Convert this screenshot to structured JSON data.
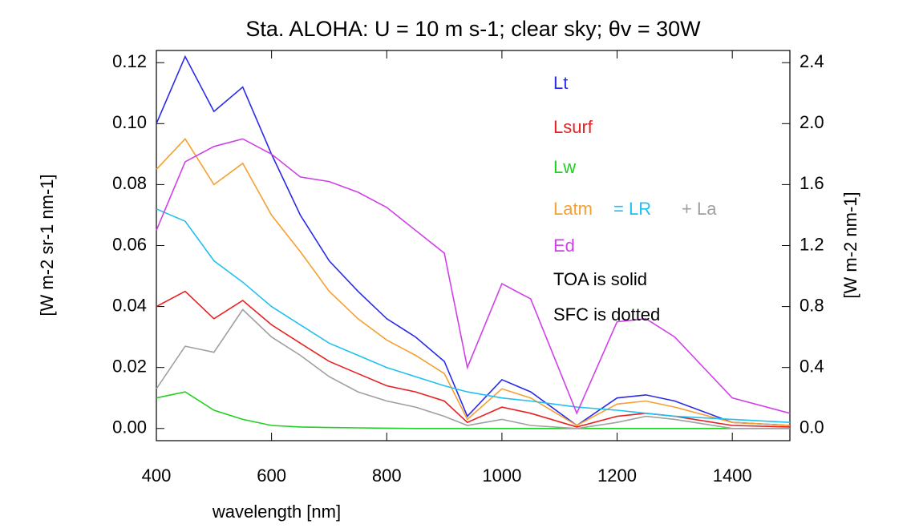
{
  "chart_data": {
    "type": "line",
    "title": "Sta. ALOHA: U = 10 m s-1; clear sky; θv = 30W",
    "x_label": "wavelength [nm]",
    "y_label": "[W m-2 sr-1 nm-1]",
    "y2_label": "[W m-2 nm-1]",
    "annotations": [
      "TOA is solid",
      "SFC is dotted"
    ],
    "x": [
      400,
      450,
      500,
      550,
      600,
      650,
      700,
      750,
      800,
      850,
      900,
      940,
      1000,
      1050,
      1130,
      1200,
      1250,
      1300,
      1400,
      1500
    ],
    "xlim": [
      400,
      1500
    ],
    "xticks": [
      400,
      600,
      800,
      1000,
      1200,
      1400
    ],
    "ylim": [
      -0.004,
      0.124
    ],
    "yticks": [
      {
        "value": 0,
        "label": "0.00"
      },
      0.02,
      0.04,
      0.06,
      0.08,
      {
        "value": 0.1,
        "label": "0.10"
      },
      0.12
    ],
    "y2lim": [
      -0.08,
      2.48
    ],
    "y2ticks": [
      {
        "value": 0,
        "label": "0.0"
      },
      0.4,
      0.8,
      1.2,
      1.6,
      {
        "value": 2,
        "label": "2.0"
      },
      2.4
    ],
    "series": [
      {
        "name": "Lt",
        "color": "#2a2ae8",
        "values": [
          0.1,
          0.122,
          0.104,
          0.112,
          0.09,
          0.07,
          0.055,
          0.045,
          0.036,
          0.03,
          0.022,
          0.004,
          0.016,
          0.012,
          0.001,
          0.01,
          0.011,
          0.009,
          0.002,
          0.001
        ]
      },
      {
        "name": "Lsurf",
        "color": "#e82020",
        "values": [
          0.04,
          0.045,
          0.036,
          0.042,
          0.034,
          0.028,
          0.022,
          0.018,
          0.014,
          0.012,
          0.009,
          0.002,
          0.007,
          0.005,
          0.0005,
          0.004,
          0.005,
          0.004,
          0.001,
          0.0005
        ]
      },
      {
        "name": "Lw",
        "color": "#20d020",
        "values": [
          0.01,
          0.012,
          0.006,
          0.003,
          0.001,
          0.0005,
          0.0003,
          0.0002,
          0.0001,
          0,
          0,
          0,
          0,
          0,
          0,
          0,
          0,
          0,
          0,
          0
        ]
      },
      {
        "name": "Latm",
        "color": "#f5a030",
        "values": [
          0.085,
          0.095,
          0.08,
          0.087,
          0.07,
          0.058,
          0.045,
          0.036,
          0.029,
          0.024,
          0.018,
          0.003,
          0.013,
          0.01,
          0.001,
          0.008,
          0.009,
          0.007,
          0.002,
          0.001
        ]
      },
      {
        "name": "= LR",
        "color": "#20c0f0",
        "values": [
          0.072,
          0.068,
          0.055,
          0.048,
          0.04,
          0.034,
          0.028,
          0.024,
          0.02,
          0.017,
          0.014,
          0.012,
          0.01,
          0.009,
          0.007,
          0.006,
          0.005,
          0.004,
          0.003,
          0.002
        ]
      },
      {
        "name": "+ La",
        "color": "#a0a0a0",
        "values": [
          0.013,
          0.027,
          0.025,
          0.039,
          0.03,
          0.024,
          0.017,
          0.012,
          0.009,
          0.007,
          0.004,
          0.001,
          0.003,
          0.001,
          0,
          0.002,
          0.004,
          0.003,
          0,
          0
        ]
      },
      {
        "name": "Ed",
        "color": "#d040e8",
        "axis": "y2",
        "values": [
          1.3,
          1.75,
          1.85,
          1.9,
          1.8,
          1.65,
          1.62,
          1.55,
          1.45,
          1.3,
          1.15,
          0.4,
          0.95,
          0.85,
          0.1,
          0.7,
          0.72,
          0.6,
          0.2,
          0.1
        ]
      }
    ]
  }
}
